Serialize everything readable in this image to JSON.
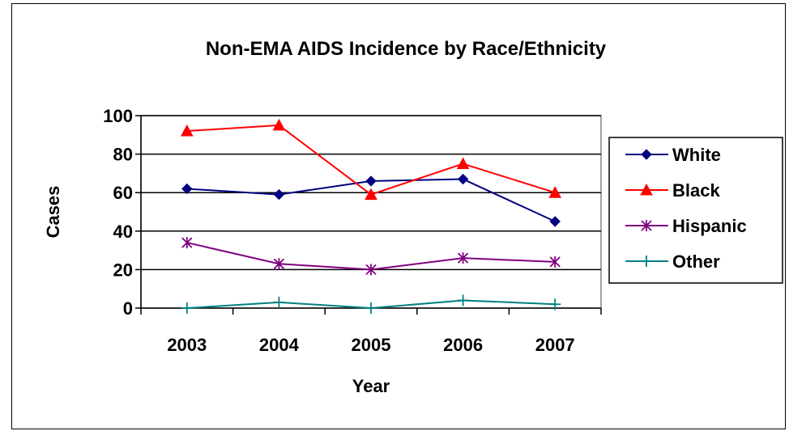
{
  "chart_data": {
    "type": "line",
    "title": "Non-EMA AIDS Incidence by Race/Ethnicity",
    "xlabel": "Year",
    "ylabel": "Cases",
    "categories": [
      "2003",
      "2004",
      "2005",
      "2006",
      "2007"
    ],
    "ylim": [
      0,
      100
    ],
    "yticks": [
      "0",
      "20",
      "40",
      "60",
      "80",
      "100"
    ],
    "grid": true,
    "legend_position": "right",
    "series": [
      {
        "name": "White",
        "color": "#000080",
        "marker": "diamond",
        "values": [
          62,
          59,
          66,
          67,
          45
        ]
      },
      {
        "name": "Black",
        "color": "#ff0000",
        "marker": "triangle",
        "values": [
          92,
          95,
          59,
          75,
          60
        ]
      },
      {
        "name": "Hispanic",
        "color": "#800080",
        "marker": "asterisk",
        "values": [
          34,
          23,
          20,
          26,
          24
        ]
      },
      {
        "name": "Other",
        "color": "#008080",
        "marker": "plus",
        "values": [
          0,
          3,
          0,
          4,
          2
        ]
      }
    ]
  }
}
